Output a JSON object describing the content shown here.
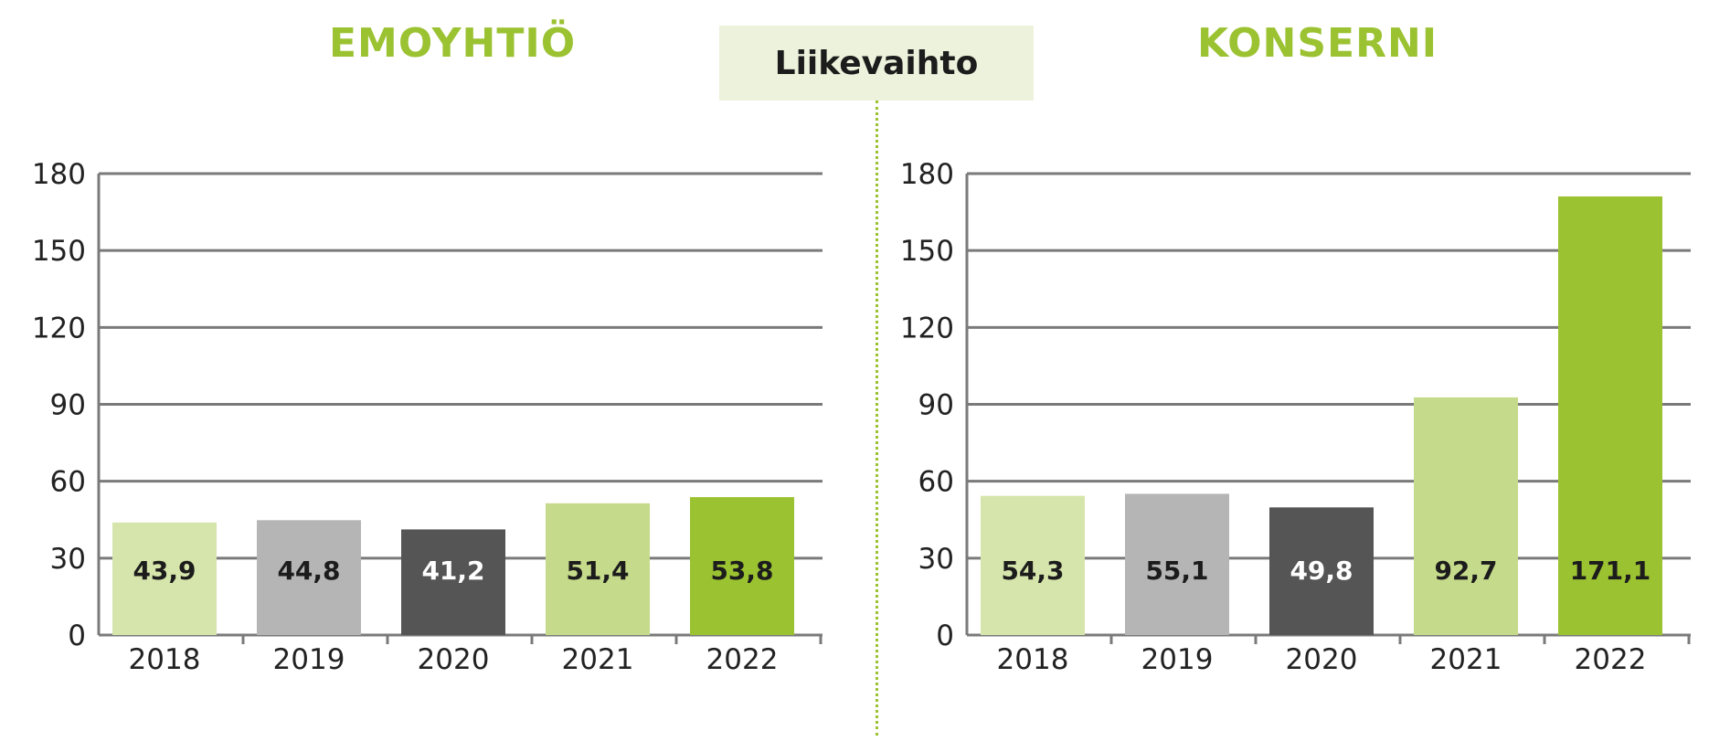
{
  "header": {
    "center_label": "Liikevaihto"
  },
  "colors": {
    "accent": "#9bc231",
    "light_green": "#c5da8a",
    "gray": "#b5b5b5",
    "dark_gray": "#555555"
  },
  "chart_data": [
    {
      "type": "bar",
      "title": "EMOYHTIÖ",
      "categories": [
        "2018",
        "2019",
        "2020",
        "2021",
        "2022"
      ],
      "values": [
        43.9,
        44.8,
        41.2,
        51.4,
        53.8
      ],
      "value_labels": [
        "43,9",
        "44,8",
        "41,2",
        "51,4",
        "53,8"
      ],
      "bar_colors": [
        "#d6e5ab",
        "#b5b5b5",
        "#555555",
        "#c5da8a",
        "#9bc231"
      ],
      "label_colors": [
        "#1c1c1c",
        "#1c1c1c",
        "#ffffff",
        "#1c1c1c",
        "#1c1c1c"
      ],
      "yticks": [
        "0",
        "30",
        "60",
        "90",
        "120",
        "150",
        "180"
      ],
      "ylim": [
        0,
        180
      ],
      "grid": true
    },
    {
      "type": "bar",
      "title": "KONSERNI",
      "categories": [
        "2018",
        "2019",
        "2020",
        "2021",
        "2022"
      ],
      "values": [
        54.3,
        55.1,
        49.8,
        92.7,
        171.1
      ],
      "value_labels": [
        "54,3",
        "55,1",
        "49,8",
        "92,7",
        "171,1"
      ],
      "bar_colors": [
        "#d6e5ab",
        "#b5b5b5",
        "#555555",
        "#c5da8a",
        "#9bc231"
      ],
      "label_colors": [
        "#1c1c1c",
        "#1c1c1c",
        "#ffffff",
        "#1c1c1c",
        "#1c1c1c"
      ],
      "yticks": [
        "0",
        "30",
        "60",
        "90",
        "120",
        "150",
        "180"
      ],
      "ylim": [
        0,
        180
      ],
      "grid": true
    }
  ]
}
